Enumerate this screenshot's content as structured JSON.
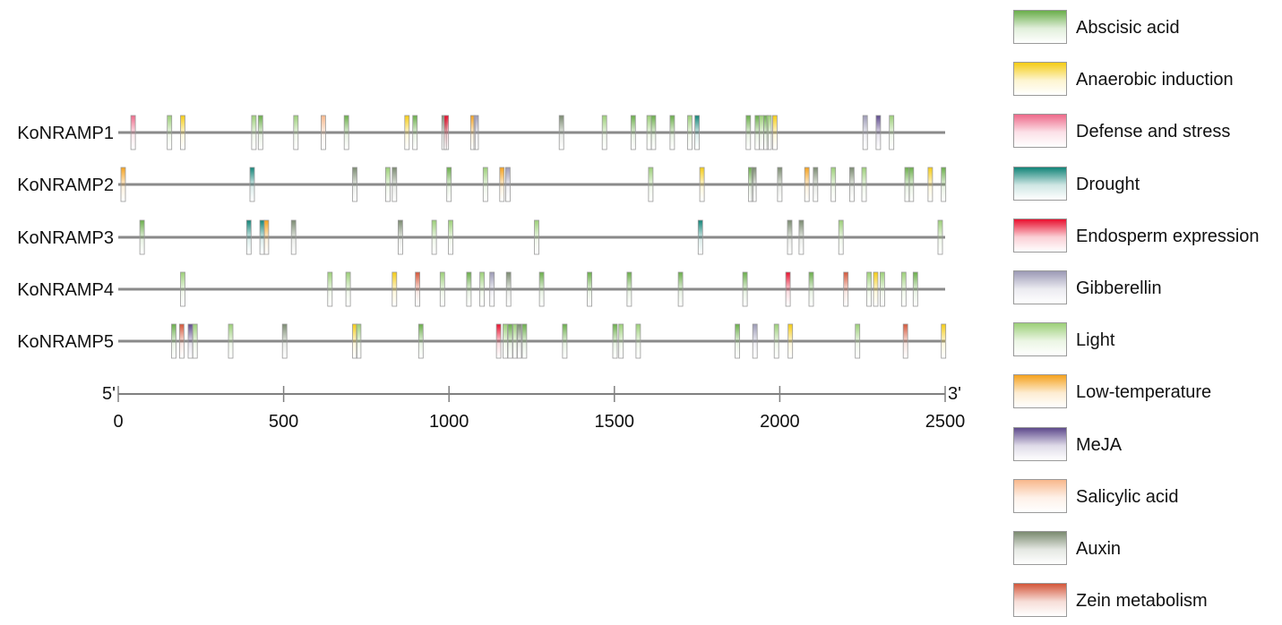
{
  "elements": [
    {
      "name": "Abscisic acid",
      "color": "#6aae4a"
    },
    {
      "name": "Anaerobic induction",
      "color": "#f5cc15"
    },
    {
      "name": "Defense and stress",
      "color": "#ee6a8a"
    },
    {
      "name": "Drought",
      "color": "#128478"
    },
    {
      "name": "Endosperm expression",
      "color": "#e8102e"
    },
    {
      "name": "Gibberellin",
      "color": "#9c9ab6"
    },
    {
      "name": "Light",
      "color": "#9ccf78"
    },
    {
      "name": "Low-temperature",
      "color": "#f5a21e"
    },
    {
      "name": "MeJA",
      "color": "#5e4a8c"
    },
    {
      "name": "Salicylic acid",
      "color": "#f8b88c"
    },
    {
      "name": "Auxin",
      "color": "#7a8a70"
    },
    {
      "name": "Zein metabolism",
      "color": "#d4573a"
    }
  ],
  "axis": {
    "range": [
      0,
      2500
    ],
    "ticks": [
      "0",
      "500",
      "1000",
      "1500",
      "2000",
      "2500"
    ],
    "start_label": "5'",
    "end_label": "3'"
  },
  "genes": [
    {
      "name": "KoNRAMP1",
      "sites": [
        {
          "pos": 45,
          "type": "Defense and stress"
        },
        {
          "pos": 155,
          "type": "Light"
        },
        {
          "pos": 195,
          "type": "Anaerobic induction"
        },
        {
          "pos": 410,
          "type": "Light"
        },
        {
          "pos": 430,
          "type": "Abscisic acid"
        },
        {
          "pos": 537,
          "type": "Light"
        },
        {
          "pos": 620,
          "type": "Salicylic acid"
        },
        {
          "pos": 690,
          "type": "Abscisic acid"
        },
        {
          "pos": 873,
          "type": "Anaerobic induction"
        },
        {
          "pos": 897,
          "type": "Abscisic acid"
        },
        {
          "pos": 985,
          "type": "Auxin"
        },
        {
          "pos": 992,
          "type": "Endosperm expression"
        },
        {
          "pos": 1072,
          "type": "Low-temperature"
        },
        {
          "pos": 1082,
          "type": "Gibberellin"
        },
        {
          "pos": 1340,
          "type": "Auxin"
        },
        {
          "pos": 1470,
          "type": "Light"
        },
        {
          "pos": 1557,
          "type": "Abscisic acid"
        },
        {
          "pos": 1605,
          "type": "Light"
        },
        {
          "pos": 1618,
          "type": "Abscisic acid"
        },
        {
          "pos": 1675,
          "type": "Abscisic acid"
        },
        {
          "pos": 1728,
          "type": "Light"
        },
        {
          "pos": 1750,
          "type": "Drought"
        },
        {
          "pos": 1905,
          "type": "Abscisic acid"
        },
        {
          "pos": 1932,
          "type": "Abscisic acid"
        },
        {
          "pos": 1945,
          "type": "Light"
        },
        {
          "pos": 1958,
          "type": "Abscisic acid"
        },
        {
          "pos": 1968,
          "type": "Light"
        },
        {
          "pos": 1985,
          "type": "Anaerobic induction"
        },
        {
          "pos": 2258,
          "type": "Gibberellin"
        },
        {
          "pos": 2298,
          "type": "MeJA"
        },
        {
          "pos": 2338,
          "type": "Light"
        }
      ]
    },
    {
      "name": "KoNRAMP2",
      "sites": [
        {
          "pos": 15,
          "type": "Low-temperature"
        },
        {
          "pos": 405,
          "type": "Drought"
        },
        {
          "pos": 715,
          "type": "Auxin"
        },
        {
          "pos": 815,
          "type": "Light"
        },
        {
          "pos": 835,
          "type": "Auxin"
        },
        {
          "pos": 1000,
          "type": "Abscisic acid"
        },
        {
          "pos": 1110,
          "type": "Light"
        },
        {
          "pos": 1160,
          "type": "Low-temperature"
        },
        {
          "pos": 1178,
          "type": "Gibberellin"
        },
        {
          "pos": 1610,
          "type": "Light"
        },
        {
          "pos": 1765,
          "type": "Anaerobic induction"
        },
        {
          "pos": 1912,
          "type": "Abscisic acid"
        },
        {
          "pos": 1922,
          "type": "Auxin"
        },
        {
          "pos": 2000,
          "type": "Auxin"
        },
        {
          "pos": 2082,
          "type": "Low-temperature"
        },
        {
          "pos": 2108,
          "type": "Auxin"
        },
        {
          "pos": 2162,
          "type": "Light"
        },
        {
          "pos": 2218,
          "type": "Auxin"
        },
        {
          "pos": 2255,
          "type": "Light"
        },
        {
          "pos": 2385,
          "type": "Abscisic acid"
        },
        {
          "pos": 2398,
          "type": "Abscisic acid"
        },
        {
          "pos": 2455,
          "type": "Anaerobic induction"
        },
        {
          "pos": 2495,
          "type": "Abscisic acid"
        }
      ]
    },
    {
      "name": "KoNRAMP3",
      "sites": [
        {
          "pos": 72,
          "type": "Abscisic acid"
        },
        {
          "pos": 395,
          "type": "Drought"
        },
        {
          "pos": 435,
          "type": "Drought"
        },
        {
          "pos": 448,
          "type": "Low-temperature"
        },
        {
          "pos": 530,
          "type": "Auxin"
        },
        {
          "pos": 853,
          "type": "Auxin"
        },
        {
          "pos": 955,
          "type": "Light"
        },
        {
          "pos": 1005,
          "type": "Light"
        },
        {
          "pos": 1265,
          "type": "Light"
        },
        {
          "pos": 1760,
          "type": "Drought"
        },
        {
          "pos": 2030,
          "type": "Auxin"
        },
        {
          "pos": 2065,
          "type": "Auxin"
        },
        {
          "pos": 2185,
          "type": "Light"
        },
        {
          "pos": 2485,
          "type": "Light"
        }
      ]
    },
    {
      "name": "KoNRAMP4",
      "sites": [
        {
          "pos": 195,
          "type": "Light"
        },
        {
          "pos": 640,
          "type": "Light"
        },
        {
          "pos": 695,
          "type": "Light"
        },
        {
          "pos": 835,
          "type": "Anaerobic induction"
        },
        {
          "pos": 905,
          "type": "Zein metabolism"
        },
        {
          "pos": 980,
          "type": "Light"
        },
        {
          "pos": 1060,
          "type": "Abscisic acid"
        },
        {
          "pos": 1100,
          "type": "Light"
        },
        {
          "pos": 1130,
          "type": "Gibberellin"
        },
        {
          "pos": 1180,
          "type": "Auxin"
        },
        {
          "pos": 1280,
          "type": "Abscisic acid"
        },
        {
          "pos": 1425,
          "type": "Abscisic acid"
        },
        {
          "pos": 1545,
          "type": "Abscisic acid"
        },
        {
          "pos": 1700,
          "type": "Abscisic acid"
        },
        {
          "pos": 1895,
          "type": "Abscisic acid"
        },
        {
          "pos": 2025,
          "type": "Endosperm expression"
        },
        {
          "pos": 2095,
          "type": "Abscisic acid"
        },
        {
          "pos": 2200,
          "type": "Zein metabolism"
        },
        {
          "pos": 2270,
          "type": "Light"
        },
        {
          "pos": 2290,
          "type": "Anaerobic induction"
        },
        {
          "pos": 2310,
          "type": "Light"
        },
        {
          "pos": 2375,
          "type": "Light"
        },
        {
          "pos": 2410,
          "type": "Abscisic acid"
        }
      ]
    },
    {
      "name": "KoNRAMP5",
      "sites": [
        {
          "pos": 168,
          "type": "Abscisic acid"
        },
        {
          "pos": 192,
          "type": "Zein metabolism"
        },
        {
          "pos": 218,
          "type": "MeJA"
        },
        {
          "pos": 232,
          "type": "Light"
        },
        {
          "pos": 340,
          "type": "Light"
        },
        {
          "pos": 503,
          "type": "Auxin"
        },
        {
          "pos": 715,
          "type": "Anaerobic induction"
        },
        {
          "pos": 727,
          "type": "Light"
        },
        {
          "pos": 915,
          "type": "Abscisic acid"
        },
        {
          "pos": 1150,
          "type": "Endosperm expression"
        },
        {
          "pos": 1170,
          "type": "Light"
        },
        {
          "pos": 1185,
          "type": "Abscisic acid"
        },
        {
          "pos": 1200,
          "type": "Light"
        },
        {
          "pos": 1212,
          "type": "Auxin"
        },
        {
          "pos": 1228,
          "type": "Abscisic acid"
        },
        {
          "pos": 1350,
          "type": "Abscisic acid"
        },
        {
          "pos": 1502,
          "type": "Abscisic acid"
        },
        {
          "pos": 1520,
          "type": "Light"
        },
        {
          "pos": 1572,
          "type": "Light"
        },
        {
          "pos": 1872,
          "type": "Abscisic acid"
        },
        {
          "pos": 1925,
          "type": "Gibberellin"
        },
        {
          "pos": 1990,
          "type": "Light"
        },
        {
          "pos": 2032,
          "type": "Anaerobic induction"
        },
        {
          "pos": 2235,
          "type": "Light"
        },
        {
          "pos": 2380,
          "type": "Zein metabolism"
        },
        {
          "pos": 2495,
          "type": "Anaerobic induction"
        }
      ]
    }
  ]
}
